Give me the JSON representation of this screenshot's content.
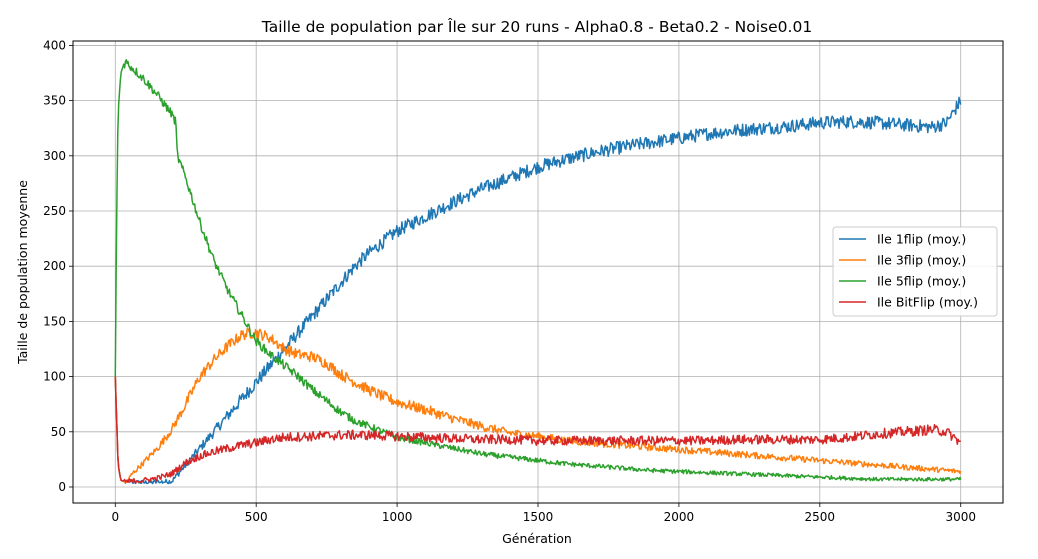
{
  "chart_data": {
    "type": "line",
    "title": "Taille de population par Île sur 20 runs - Alpha0.8 - Beta0.2 - Noise0.01",
    "xlabel": "Génération",
    "ylabel": "Taille de population moyenne",
    "xlim": [
      -150,
      3150
    ],
    "ylim": [
      -14.5,
      404
    ],
    "xticks": [
      0,
      500,
      1000,
      1500,
      2000,
      2500,
      3000
    ],
    "yticks": [
      0,
      50,
      100,
      150,
      200,
      250,
      300,
      350,
      400
    ],
    "grid": true,
    "legend_position": "center-right",
    "series": [
      {
        "name": "Ile 1flip (moy.)",
        "color": "#1f77b4",
        "noise": 6,
        "x": [
          0,
          10,
          20,
          40,
          100,
          200,
          250,
          300,
          350,
          400,
          450,
          500,
          550,
          600,
          650,
          700,
          750,
          800,
          850,
          900,
          950,
          1000,
          1100,
          1200,
          1300,
          1400,
          1500,
          1600,
          1700,
          1800,
          1900,
          2000,
          2100,
          2200,
          2300,
          2400,
          2500,
          2600,
          2700,
          2800,
          2900,
          2950,
          3000
        ],
        "y": [
          100,
          20,
          6,
          4,
          4,
          5,
          20,
          35,
          50,
          65,
          80,
          95,
          110,
          125,
          140,
          155,
          170,
          185,
          200,
          212,
          222,
          232,
          245,
          258,
          270,
          280,
          290,
          297,
          303,
          308,
          312,
          316,
          320,
          323,
          325,
          327,
          330,
          331,
          330,
          328,
          326,
          330,
          350
        ]
      },
      {
        "name": "Ile 3flip (moy.)",
        "color": "#ff7f0e",
        "noise": 5,
        "x": [
          0,
          10,
          20,
          40,
          60,
          100,
          150,
          200,
          250,
          300,
          350,
          400,
          450,
          500,
          550,
          600,
          650,
          700,
          750,
          800,
          850,
          900,
          950,
          1000,
          1100,
          1200,
          1300,
          1400,
          1500,
          1600,
          1700,
          1800,
          1900,
          2000,
          2100,
          2200,
          2300,
          2400,
          2500,
          2600,
          2700,
          2800,
          2900,
          3000
        ],
        "y": [
          100,
          20,
          6,
          4,
          12,
          22,
          35,
          52,
          75,
          100,
          115,
          128,
          138,
          140,
          135,
          125,
          120,
          118,
          112,
          102,
          95,
          88,
          82,
          77,
          70,
          62,
          55,
          49,
          46,
          42,
          40,
          38,
          36,
          34,
          32,
          30,
          28,
          26,
          24,
          22,
          20,
          18,
          16,
          14
        ]
      },
      {
        "name": "Ile 5flip (moy.)",
        "color": "#2ca02c",
        "noise": 4,
        "x": [
          0,
          5,
          10,
          20,
          30,
          40,
          50,
          100,
          150,
          200,
          215,
          220,
          250,
          300,
          350,
          400,
          450,
          500,
          550,
          600,
          650,
          700,
          750,
          800,
          850,
          900,
          950,
          1000,
          1100,
          1200,
          1300,
          1400,
          1500,
          1600,
          1700,
          1800,
          1900,
          2000,
          2100,
          2200,
          2300,
          2400,
          2500,
          2600,
          2700,
          2800,
          2900,
          3000
        ],
        "y": [
          100,
          250,
          340,
          375,
          383,
          385,
          382,
          370,
          355,
          338,
          330,
          300,
          280,
          240,
          205,
          178,
          155,
          132,
          120,
          110,
          100,
          88,
          78,
          68,
          60,
          55,
          50,
          45,
          40,
          35,
          30,
          27,
          24,
          21,
          19,
          17,
          15,
          14,
          13,
          12,
          11,
          10,
          9,
          8,
          7,
          7,
          7,
          7
        ]
      },
      {
        "name": "Ile BitFlip (moy.)",
        "color": "#d62728",
        "noise": 6,
        "x": [
          0,
          10,
          20,
          40,
          100,
          150,
          200,
          250,
          300,
          350,
          400,
          450,
          500,
          550,
          600,
          700,
          800,
          900,
          1000,
          1100,
          1200,
          1300,
          1400,
          1500,
          1600,
          1700,
          1800,
          1900,
          2000,
          2100,
          2200,
          2300,
          2400,
          2500,
          2600,
          2700,
          2800,
          2900,
          2950,
          3000
        ],
        "y": [
          100,
          20,
          6,
          5,
          6,
          8,
          12,
          22,
          28,
          32,
          35,
          38,
          40,
          43,
          45,
          46,
          47,
          47,
          46,
          45,
          44,
          43,
          43,
          42,
          42,
          42,
          42,
          42,
          42,
          42,
          43,
          43,
          43,
          43,
          45,
          48,
          50,
          52,
          50,
          40
        ]
      }
    ]
  }
}
